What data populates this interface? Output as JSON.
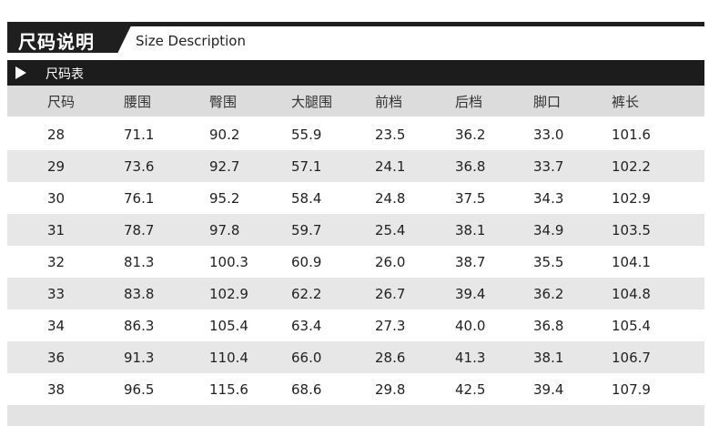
{
  "header": {
    "title_cn": "尺码说明",
    "title_en": "Size Description"
  },
  "section": {
    "label": "尺码表"
  },
  "table": {
    "columns": [
      "尺码",
      "腰围",
      "臀围",
      "大腿围",
      "前档",
      "后档",
      "脚口",
      "裤长"
    ],
    "rows": [
      [
        "28",
        "71.1",
        "90.2",
        "55.9",
        "23.5",
        "36.2",
        "33.0",
        "101.6"
      ],
      [
        "29",
        "73.6",
        "92.7",
        "57.1",
        "24.1",
        "36.8",
        "33.7",
        "102.2"
      ],
      [
        "30",
        "76.1",
        "95.2",
        "58.4",
        "24.8",
        "37.5",
        "34.3",
        "102.9"
      ],
      [
        "31",
        "78.7",
        "97.8",
        "59.7",
        "25.4",
        "38.1",
        "34.9",
        "103.5"
      ],
      [
        "32",
        "81.3",
        "100.3",
        "60.9",
        "26.0",
        "38.7",
        "35.5",
        "104.1"
      ],
      [
        "33",
        "83.8",
        "102.9",
        "62.2",
        "26.7",
        "39.4",
        "36.2",
        "104.8"
      ],
      [
        "34",
        "86.3",
        "105.4",
        "63.4",
        "27.3",
        "40.0",
        "36.8",
        "105.4"
      ],
      [
        "36",
        "91.3",
        "110.4",
        "66.0",
        "28.6",
        "41.3",
        "38.1",
        "106.7"
      ],
      [
        "38",
        "96.5",
        "115.6",
        "68.6",
        "29.8",
        "42.5",
        "39.4",
        "107.9"
      ]
    ]
  }
}
